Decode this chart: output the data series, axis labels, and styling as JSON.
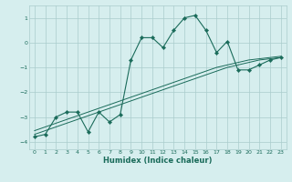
{
  "xlabel": "Humidex (Indice chaleur)",
  "background_color": "#d6eeee",
  "grid_color": "#aacccc",
  "line_color": "#1a6b5a",
  "xlim": [
    -0.5,
    23.5
  ],
  "ylim": [
    -4.3,
    1.5
  ],
  "xticks": [
    0,
    1,
    2,
    3,
    4,
    5,
    6,
    7,
    8,
    9,
    10,
    11,
    12,
    13,
    14,
    15,
    16,
    17,
    18,
    19,
    20,
    21,
    22,
    23
  ],
  "yticks": [
    -4,
    -3,
    -2,
    -1,
    0,
    1
  ],
  "series1_x": [
    0,
    1,
    2,
    3,
    4,
    5,
    6,
    7,
    8,
    9,
    10,
    11,
    12,
    13,
    14,
    15,
    16,
    17,
    18,
    19,
    20,
    21,
    22,
    23
  ],
  "series1_y": [
    -3.8,
    -3.7,
    -3.0,
    -2.8,
    -2.8,
    -3.6,
    -2.8,
    -3.2,
    -2.9,
    -0.7,
    0.2,
    0.2,
    -0.2,
    0.5,
    1.0,
    1.1,
    0.5,
    -0.4,
    0.05,
    -1.1,
    -1.1,
    -0.9,
    -0.7,
    -0.6
  ],
  "series2_x": [
    0,
    1,
    2,
    3,
    4,
    5,
    6,
    7,
    8,
    9,
    10,
    11,
    12,
    13,
    14,
    15,
    16,
    17,
    18,
    19,
    20,
    21,
    22,
    23
  ],
  "series2_y": [
    -3.55,
    -3.4,
    -3.25,
    -3.1,
    -2.95,
    -2.8,
    -2.65,
    -2.5,
    -2.35,
    -2.2,
    -2.05,
    -1.9,
    -1.75,
    -1.6,
    -1.45,
    -1.3,
    -1.15,
    -1.0,
    -0.9,
    -0.8,
    -0.7,
    -0.65,
    -0.6,
    -0.55
  ],
  "series3_x": [
    0,
    1,
    2,
    3,
    4,
    5,
    6,
    7,
    8,
    9,
    10,
    11,
    12,
    13,
    14,
    15,
    16,
    17,
    18,
    19,
    20,
    21,
    22,
    23
  ],
  "series3_y": [
    -3.7,
    -3.55,
    -3.4,
    -3.25,
    -3.1,
    -2.95,
    -2.8,
    -2.65,
    -2.5,
    -2.35,
    -2.2,
    -2.05,
    -1.9,
    -1.75,
    -1.6,
    -1.45,
    -1.3,
    -1.15,
    -1.0,
    -0.9,
    -0.8,
    -0.7,
    -0.65,
    -0.6
  ],
  "tick_fontsize": 4.5,
  "xlabel_fontsize": 6.0
}
